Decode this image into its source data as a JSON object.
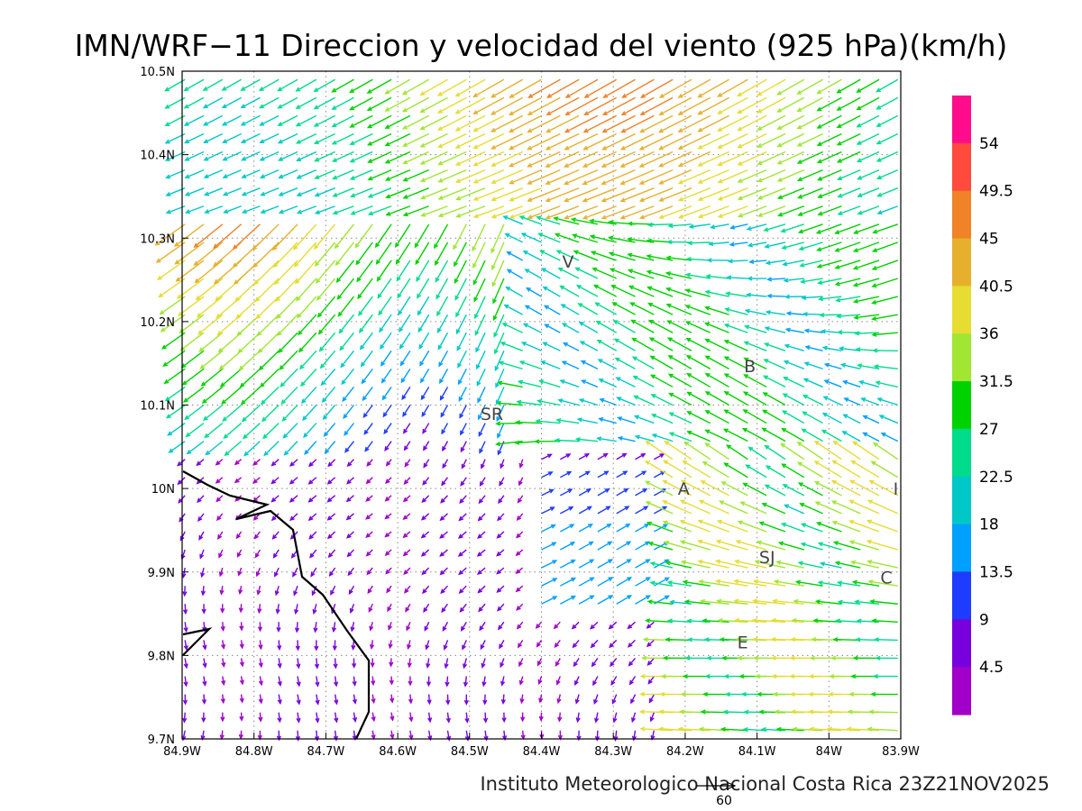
{
  "title": "IMN/WRF−11 Direccion y velocidad del viento (925 hPa)(km/h)",
  "credit": "Instituto Meteorologico Nacional Costa Rica 23Z21NOV2025",
  "axes": {
    "lon_range": [
      -84.9,
      -83.9
    ],
    "lat_range": [
      9.7,
      10.5
    ],
    "x_tick_labels": [
      "84.9W",
      "84.8W",
      "84.7W",
      "84.6W",
      "84.5W",
      "84.4W",
      "84.3W",
      "84.2W",
      "84.1W",
      "84W",
      "83.9W"
    ],
    "y_tick_labels": [
      "9.7N",
      "9.8N",
      "9.9N",
      "10N",
      "10.1N",
      "10.2N",
      "10.3N",
      "10.4N",
      "10.5N"
    ],
    "grid": "dotted"
  },
  "places": [
    {
      "label": "V",
      "lon": -84.363,
      "lat": 10.272
    },
    {
      "label": "SR",
      "lon": -84.469,
      "lat": 10.09
    },
    {
      "label": "B",
      "lon": -84.11,
      "lat": 10.147
    },
    {
      "label": "A",
      "lon": -84.202,
      "lat": 10.0
    },
    {
      "label": "I",
      "lon": -83.907,
      "lat": 10.0
    },
    {
      "label": "SJ",
      "lon": -84.086,
      "lat": 9.918
    },
    {
      "label": "C",
      "lon": -83.92,
      "lat": 9.894
    },
    {
      "label": "E",
      "lon": -84.12,
      "lat": 9.816
    }
  ],
  "colorbar": {
    "labels": [
      "54",
      "49.5",
      "45",
      "40.5",
      "36",
      "31.5",
      "27",
      "22.5",
      "18",
      "13.5",
      "9",
      "4.5"
    ],
    "colors": [
      "#ff0c8c",
      "#ff4a3c",
      "#f08228",
      "#e6b02c",
      "#e6dc32",
      "#a0e632",
      "#00d200",
      "#00dc8c",
      "#00c8c8",
      "#00a0ff",
      "#1e3cff",
      "#7800dc",
      "#a000c8"
    ]
  },
  "reference_vector": {
    "label": "60",
    "unit": "km/h"
  },
  "colors": {
    "coastline": "#000000",
    "frame": "#000000"
  }
}
